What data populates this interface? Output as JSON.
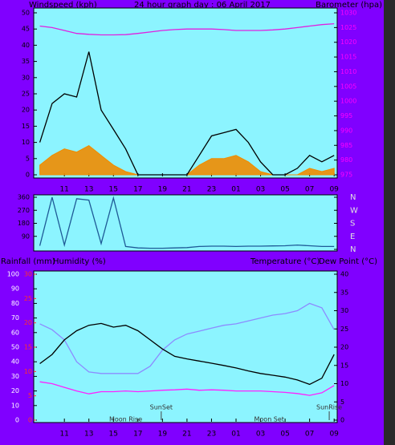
{
  "chart_data": [
    {
      "type": "line",
      "title": "24 hour graph day : 06 April 2017",
      "y_label": "Windspeed (kph)",
      "y2_label": "Barometer (hpa)",
      "x": [
        9,
        10,
        11,
        12,
        13,
        14,
        15,
        16,
        17,
        18,
        19,
        20,
        21,
        22,
        23,
        24,
        25,
        26,
        27,
        28,
        29,
        30,
        31,
        32,
        33
      ],
      "xlim": [
        8.5,
        33.25
      ],
      "xticks": [
        11,
        13,
        15,
        17,
        19,
        21,
        23,
        {
          "value": 25,
          "label": "01"
        },
        {
          "value": 27,
          "label": "03"
        },
        {
          "value": 29,
          "label": "05"
        },
        {
          "value": 31,
          "label": "07"
        },
        {
          "value": 33,
          "label": "09"
        }
      ],
      "ylim": [
        0,
        50
      ],
      "yticks": [
        0,
        5,
        10,
        15,
        20,
        25,
        30,
        35,
        40,
        45,
        50
      ],
      "y2lim": [
        975,
        1030
      ],
      "y2ticks": [
        975,
        980,
        985,
        990,
        995,
        1000,
        1005,
        1010,
        1015,
        1020,
        1025,
        1030
      ],
      "series": [
        {
          "color": "#f08c00",
          "area": true,
          "values": [
            3,
            6,
            8,
            7,
            9,
            6,
            3,
            1,
            0,
            0,
            0,
            0,
            0,
            3,
            5,
            5,
            6,
            4,
            1,
            0,
            0,
            0,
            2,
            1,
            2
          ]
        },
        {
          "color": "#000000",
          "values": [
            10,
            22,
            25,
            24,
            38,
            20,
            14,
            8,
            0,
            0,
            0,
            0,
            0,
            6,
            12,
            13,
            14,
            10,
            4,
            0,
            0,
            2,
            6,
            4,
            6
          ]
        },
        {
          "color": "#e020e0",
          "axis": "y2",
          "values": [
            1025.5,
            1025,
            1024,
            1023,
            1022.7,
            1022.5,
            1022.5,
            1022.6,
            1023,
            1023.5,
            1024,
            1024.3,
            1024.5,
            1024.5,
            1024.5,
            1024.3,
            1024,
            1024,
            1024,
            1024.2,
            1024.5,
            1025,
            1025.5,
            1026,
            1026.3
          ]
        }
      ]
    },
    {
      "type": "line",
      "x": [
        9,
        10,
        11,
        12,
        13,
        14,
        15,
        16,
        17,
        18,
        19,
        20,
        21,
        22,
        23,
        24,
        25,
        26,
        27,
        28,
        29,
        30,
        31,
        32,
        33
      ],
      "xlim": [
        8.5,
        33.25
      ],
      "ylim": [
        0,
        360
      ],
      "yticks": [
        90,
        180,
        270,
        360
      ],
      "y2lim": [
        0,
        360
      ],
      "y2ticks": [
        {
          "value": 360,
          "label": "N"
        },
        {
          "value": 270,
          "label": "W"
        },
        {
          "value": 180,
          "label": "S"
        },
        {
          "value": 90,
          "label": "E"
        },
        {
          "value": 0,
          "label": "N"
        }
      ],
      "series": [
        {
          "color": "#1e5a96",
          "values": [
            25,
            360,
            30,
            350,
            340,
            40,
            355,
            20,
            10,
            8,
            8,
            10,
            12,
            20,
            22,
            22,
            20,
            22,
            22,
            24,
            25,
            30,
            25,
            20,
            20
          ]
        }
      ]
    },
    {
      "type": "line",
      "rain_label": "Rainfall (mm)",
      "y_label": "Humidity (%)",
      "y2_label": "Temperature (°C)",
      "y2_label_2": "Dew Point (°C)",
      "x": [
        9,
        10,
        11,
        12,
        13,
        14,
        15,
        16,
        17,
        18,
        19,
        20,
        21,
        22,
        23,
        24,
        25,
        26,
        27,
        28,
        29,
        30,
        31,
        32,
        33
      ],
      "xlim": [
        8.5,
        33.25
      ],
      "xticks": [
        11,
        13,
        15,
        17,
        19,
        21,
        23,
        {
          "value": 25,
          "label": "01"
        },
        {
          "value": 27,
          "label": "03"
        },
        {
          "value": 29,
          "label": "05"
        },
        {
          "value": 31,
          "label": "07"
        },
        {
          "value": 33,
          "label": "09"
        }
      ],
      "ylim": [
        0,
        100
      ],
      "yticks": [
        0,
        10,
        20,
        30,
        40,
        50,
        60,
        70,
        80,
        90,
        100
      ],
      "rainlim": [
        0,
        30
      ],
      "rainticks": [
        0,
        5,
        10,
        15,
        20,
        25,
        30
      ],
      "y2lim": [
        0,
        40
      ],
      "y2ticks": [
        0,
        5,
        10,
        15,
        20,
        25,
        30,
        35,
        40
      ],
      "series": [
        {
          "color": "#8c8cff",
          "values": [
            66,
            62,
            55,
            40,
            33,
            32,
            32,
            32,
            32,
            37,
            48,
            55,
            59,
            61,
            63,
            65,
            66,
            68,
            70,
            72,
            73,
            75,
            80,
            77,
            62
          ]
        },
        {
          "color": "#000000",
          "axis": "y2",
          "values": [
            15.5,
            18,
            22,
            24.5,
            26,
            26.5,
            25.5,
            26,
            24.5,
            22,
            19.5,
            17.5,
            16.8,
            16.2,
            15.6,
            15,
            14.3,
            13.5,
            12.8,
            12.3,
            11.8,
            11,
            9.8,
            11.5,
            18
          ]
        },
        {
          "color": "#ff20ff",
          "axis": "y2",
          "values": [
            10.5,
            10,
            9,
            8,
            7.2,
            7.8,
            7.8,
            8,
            7.8,
            8,
            8.2,
            8.3,
            8.5,
            8.2,
            8.3,
            8.2,
            8,
            8,
            8,
            7.8,
            7.6,
            7.3,
            6.8,
            7.5,
            9.5
          ]
        }
      ],
      "annotations": [
        {
          "text": "SunSet",
          "x": 18.9
        },
        {
          "text": "Moon Rise",
          "x": 16
        },
        {
          "text": "Moon Set",
          "x": 27.7
        },
        {
          "text": "SunRise",
          "x": 32.6
        }
      ]
    }
  ]
}
